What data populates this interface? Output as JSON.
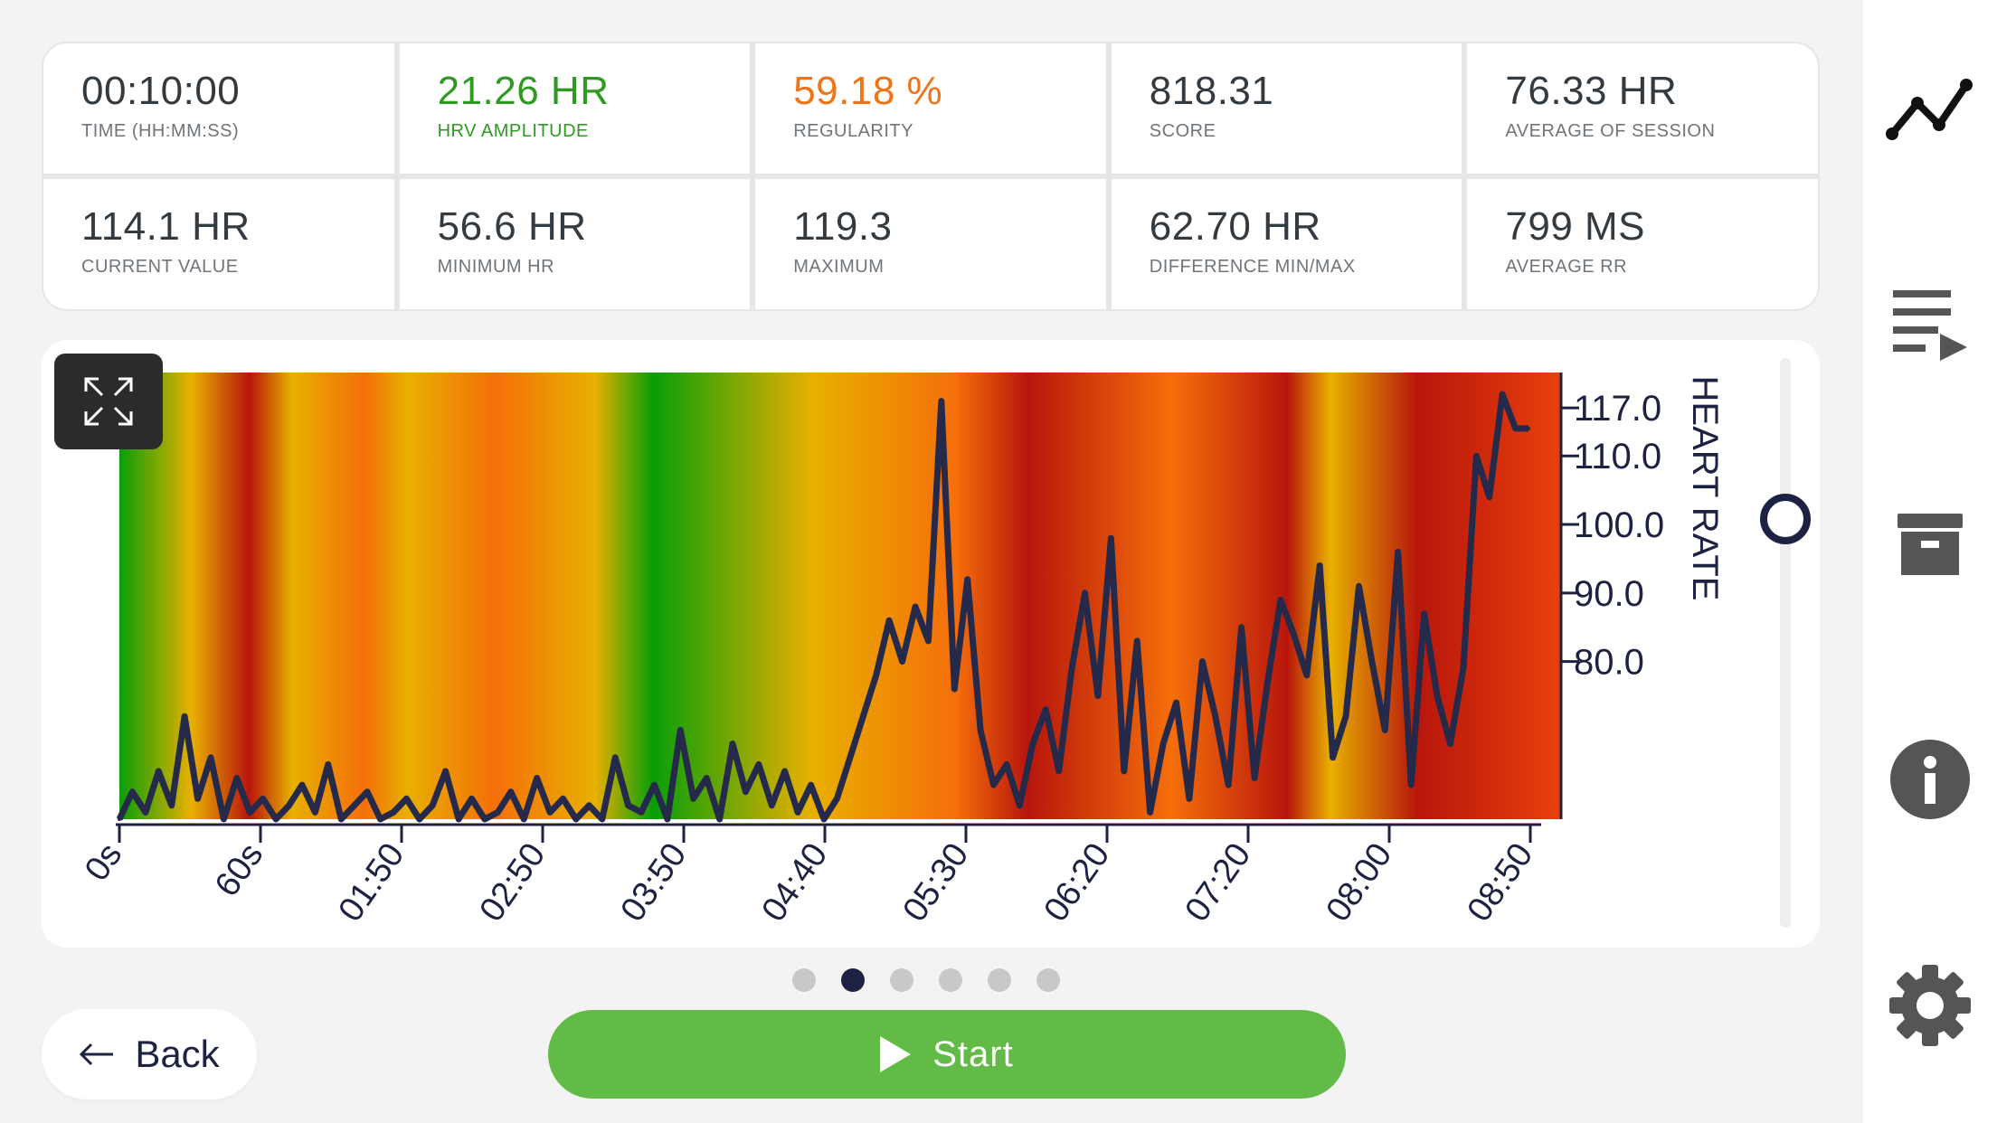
{
  "stats": [
    {
      "value": "00:10:00",
      "label": "TIME (HH:MM:SS)",
      "color": "#333a40"
    },
    {
      "value": "21.26 HR",
      "label": "HRV AMPLITUDE",
      "color": "#2e9a22"
    },
    {
      "value": "59.18 %",
      "label": "REGULARITY",
      "color": "#f07316"
    },
    {
      "value": "818.31",
      "label": "SCORE",
      "color": "#333a40"
    },
    {
      "value": "76.33 HR",
      "label": "AVERAGE OF SESSION",
      "color": "#333a40"
    },
    {
      "value": "114.1 HR",
      "label": "CURRENT VALUE",
      "color": "#333a40"
    },
    {
      "value": "56.6 HR",
      "label": "MINIMUM HR",
      "color": "#333a40"
    },
    {
      "value": "119.3",
      "label": "MAXIMUM",
      "color": "#333a40"
    },
    {
      "value": "62.70 HR",
      "label": "DIFFERENCE MIN/MAX",
      "color": "#333a40"
    },
    {
      "value": "799 MS",
      "label": "AVERAGE RR",
      "color": "#333a40"
    }
  ],
  "chart_data": {
    "type": "line",
    "ylabel": "HEART RATE",
    "y_axis_side": "right",
    "yticks": [
      "117.0",
      "110.0",
      "100.0",
      "90.0",
      "80.0"
    ],
    "ylim": [
      57,
      119
    ],
    "xticks": [
      "0s",
      "60s",
      "01:50",
      "02:50",
      "03:50",
      "04:40",
      "05:30",
      "06:20",
      "07:20",
      "08:00",
      "08:50"
    ],
    "xlim": [
      0,
      540
    ],
    "background_zone_colors": [
      "#089e08",
      "#e8b000",
      "#b8160c",
      "#e8b000",
      "#f56f0a",
      "#e8b000",
      "#f56f0a",
      "#e8b000",
      "#089e08",
      "#e8b000",
      "#f56f0a",
      "#b8160c",
      "#f56f0a",
      "#b8160c",
      "#e8b000",
      "#b8160c"
    ],
    "line_color": "#262a4a",
    "series": [
      {
        "x": [
          0,
          5,
          10,
          15,
          20,
          25,
          30,
          35,
          40,
          45,
          50,
          55,
          60,
          65,
          70,
          75,
          80,
          85,
          90,
          95,
          100,
          105,
          110,
          115,
          120,
          125,
          130,
          135,
          140,
          145,
          150,
          155,
          160,
          165,
          170,
          175,
          180,
          185,
          190,
          195,
          200,
          205,
          210,
          215,
          220,
          225,
          230,
          235,
          240,
          245,
          250,
          255,
          260,
          265,
          270,
          275,
          280,
          285,
          290,
          295,
          300,
          305,
          310,
          315,
          320,
          325,
          330,
          335,
          340,
          345,
          350,
          355,
          360,
          365,
          370,
          375,
          380,
          385,
          390,
          395,
          400,
          405,
          410,
          415,
          420,
          425,
          430,
          435,
          440,
          445,
          450,
          455,
          460,
          465,
          470,
          475,
          480,
          485,
          490,
          495,
          500,
          505,
          510,
          515,
          520,
          525,
          530,
          535,
          540
        ],
        "values": [
          57,
          61,
          58,
          64,
          59,
          72,
          60,
          66,
          57,
          63,
          58,
          60,
          57,
          59,
          62,
          58,
          65,
          57,
          59,
          61,
          57,
          58,
          60,
          57,
          59,
          64,
          57,
          60,
          57,
          58,
          61,
          57,
          63,
          58,
          60,
          57,
          59,
          57,
          66,
          59,
          58,
          62,
          57,
          70,
          60,
          63,
          57,
          68,
          61,
          65,
          59,
          64,
          58,
          62,
          57,
          60,
          66,
          72,
          78,
          86,
          80,
          88,
          83,
          118,
          76,
          92,
          70,
          62,
          65,
          59,
          68,
          73,
          64,
          79,
          90,
          75,
          98,
          64,
          83,
          58,
          68,
          74,
          60,
          80,
          72,
          62,
          85,
          63,
          77,
          89,
          84,
          78,
          94,
          66,
          72,
          91,
          80,
          70,
          96,
          62,
          87,
          75,
          68,
          79,
          110,
          104,
          119,
          114,
          114
        ]
      }
    ]
  },
  "pager": {
    "count": 6,
    "active": 1
  },
  "back_label": "Back",
  "start_label": "Start",
  "sidebar_icons": [
    "chart-line-icon",
    "playlist-icon",
    "archive-icon",
    "info-icon",
    "settings-gear-icon"
  ]
}
